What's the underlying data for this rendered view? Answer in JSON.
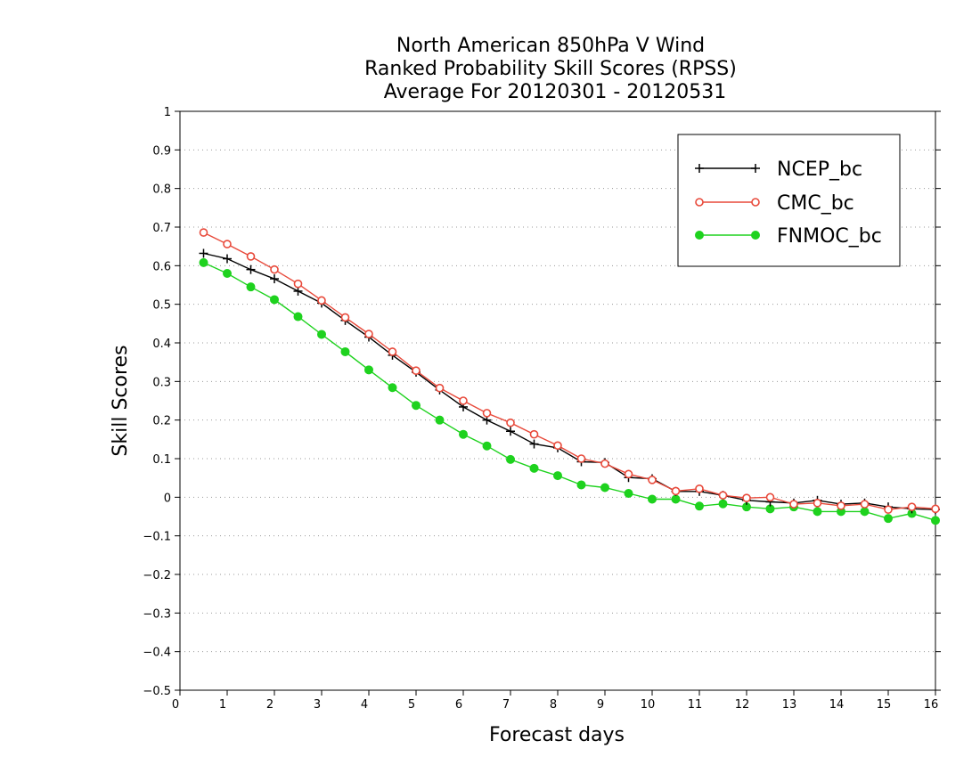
{
  "chart_data": {
    "type": "line",
    "title": [
      "North American 850hPa V Wind",
      "Ranked Probability Skill Scores (RPSS)",
      "Average For 20120301 - 20120531"
    ],
    "xlabel": "Forecast days",
    "ylabel": "Skill Scores",
    "xlim": [
      0,
      16
    ],
    "ylim": [
      -0.5,
      1
    ],
    "xticks": [
      0,
      1,
      2,
      3,
      4,
      5,
      6,
      7,
      8,
      9,
      10,
      11,
      12,
      13,
      14,
      15,
      16
    ],
    "yticks": [
      1,
      0.9,
      0.8,
      0.7,
      0.6,
      0.5,
      0.4,
      0.3,
      0.2,
      0.1,
      0,
      -0.1,
      -0.2,
      -0.3,
      -0.4,
      -0.5
    ],
    "xtick_labels": [
      "0",
      "1",
      "2",
      "3",
      "4",
      "5",
      "6",
      "7",
      "8",
      "9",
      "10",
      "11",
      "12",
      "13",
      "14",
      "15",
      "16"
    ],
    "ytick_labels": [
      "1",
      "0.9",
      "0.8",
      "0.7",
      "0.6",
      "0.5",
      "0.4",
      "0.3",
      "0.2",
      "0.1",
      "0",
      "−0.1",
      "−0.2",
      "−0.3",
      "−0.4",
      "−0.5"
    ],
    "grid": "horizontal dotted",
    "legend_position": "top-right",
    "x": [
      0.5,
      1,
      1.5,
      2,
      2.5,
      3,
      3.5,
      4,
      4.5,
      5,
      5.5,
      6,
      6.5,
      7,
      7.5,
      8,
      8.5,
      9,
      9.5,
      10,
      10.5,
      11,
      11.5,
      12,
      12.5,
      13,
      13.5,
      14,
      14.5,
      15,
      15.5,
      16
    ],
    "series": [
      {
        "name": "NCEP_bc",
        "color": "#000000",
        "marker": "plus",
        "values": [
          0.632,
          0.618,
          0.59,
          0.566,
          0.534,
          0.503,
          0.458,
          0.415,
          0.368,
          0.324,
          0.278,
          0.234,
          0.2,
          0.171,
          0.138,
          0.128,
          0.092,
          0.09,
          0.051,
          0.048,
          0.015,
          0.015,
          0.005,
          -0.008,
          -0.012,
          -0.015,
          -0.008,
          -0.018,
          -0.015,
          -0.025,
          -0.03,
          -0.032
        ]
      },
      {
        "name": "CMC_bc",
        "color": "#e8493a",
        "marker": "open-circle",
        "values": [
          0.686,
          0.656,
          0.624,
          0.59,
          0.553,
          0.51,
          0.466,
          0.423,
          0.377,
          0.328,
          0.283,
          0.25,
          0.218,
          0.193,
          0.163,
          0.134,
          0.1,
          0.087,
          0.06,
          0.045,
          0.016,
          0.022,
          0.005,
          -0.002,
          0.0,
          -0.018,
          -0.015,
          -0.022,
          -0.018,
          -0.032,
          -0.025,
          -0.03
        ]
      },
      {
        "name": "FNMOC_bc",
        "color": "#1ed21e",
        "marker": "filled-circle",
        "values": [
          0.608,
          0.58,
          0.545,
          0.512,
          0.468,
          0.422,
          0.377,
          0.33,
          0.284,
          0.238,
          0.2,
          0.163,
          0.133,
          0.098,
          0.075,
          0.056,
          0.032,
          0.025,
          0.01,
          -0.005,
          -0.005,
          -0.023,
          -0.017,
          -0.025,
          -0.03,
          -0.025,
          -0.037,
          -0.037,
          -0.037,
          -0.055,
          -0.042,
          -0.06
        ]
      }
    ]
  }
}
